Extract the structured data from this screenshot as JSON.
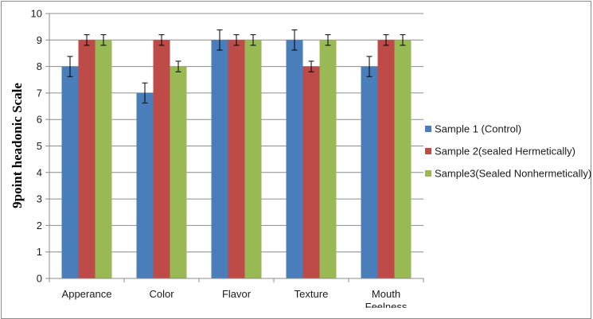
{
  "chart_data": {
    "type": "bar",
    "ylabel": "9point headonic Scale",
    "xlabel": "",
    "ylim": [
      0,
      10
    ],
    "yticks": [
      "0",
      "1",
      "2",
      "3",
      "4",
      "5",
      "6",
      "7",
      "8",
      "9",
      "10"
    ],
    "categories": [
      "Apperance",
      "Color",
      "Flavor",
      "Texture",
      "Mouth Feelness"
    ],
    "series": [
      {
        "name": "Sample 1 (Control)",
        "color": "#4a7ebb",
        "values": [
          8,
          7,
          9,
          9,
          8
        ],
        "errors": [
          0.38,
          0.38,
          0.38,
          0.38,
          0.38
        ]
      },
      {
        "name": "Sample 2(sealed Hermetically)",
        "color": "#be4b48",
        "values": [
          9,
          9,
          9,
          8,
          9
        ],
        "errors": [
          0.2,
          0.2,
          0.2,
          0.2,
          0.2
        ]
      },
      {
        "name": "Sample3(Sealed Nonhermetically)",
        "color": "#98b954",
        "values": [
          9,
          8,
          9,
          9,
          9
        ],
        "errors": [
          0.2,
          0.2,
          0.2,
          0.2,
          0.2
        ]
      }
    ],
    "grid": true,
    "legend_position": "right"
  }
}
